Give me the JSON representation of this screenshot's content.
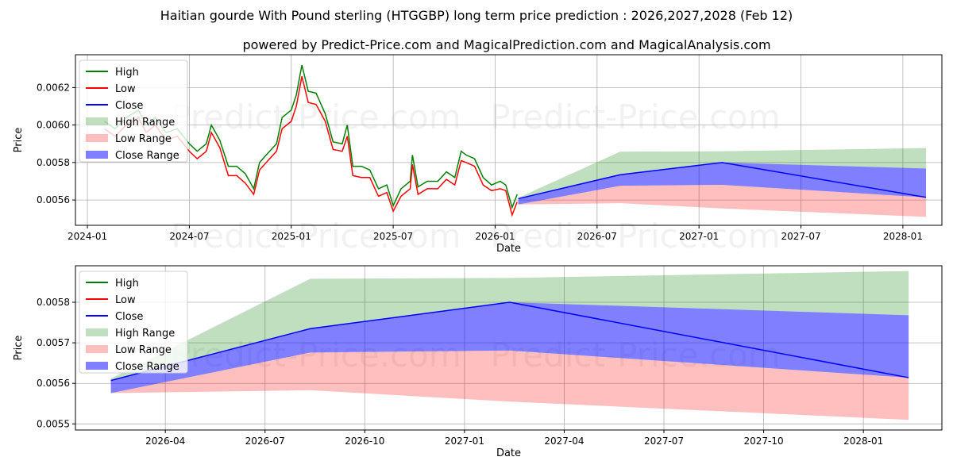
{
  "title": "Haitian gourde With Pound sterling (HTGGBP) long term price prediction : 2026,2027,2028 (Feb 12)",
  "subtitle": "powered by Predict-Price.com and MagicalPrediction.com and MagicalAnalysis.com",
  "watermark": "Predict-Price.com",
  "colors": {
    "high": "#008000",
    "low": "#ff0000",
    "close": "#0000ff",
    "high_range": "#008000",
    "low_range": "#ff0000",
    "close_range": "#0000ff"
  },
  "legend": [
    "High",
    "Low",
    "Close",
    "High Range",
    "Low Range",
    "Close Range"
  ],
  "chart_data": [
    {
      "type": "line",
      "name": "history-and-forecast",
      "xlabel": "Date",
      "ylabel": "Price",
      "ylim": [
        0.005465,
        0.006375
      ],
      "xlim": [
        "2023-12-10",
        "2028-03-10"
      ],
      "yticks": [
        "0.0056",
        "0.0058",
        "0.0060",
        "0.0062"
      ],
      "ytick_values": [
        0.0056,
        0.0058,
        0.006,
        0.0062
      ],
      "xticks": [
        "2024-01",
        "2024-07",
        "2025-01",
        "2025-07",
        "2026-01",
        "2026-07",
        "2027-01",
        "2027-07",
        "2028-01"
      ],
      "grid": true,
      "legend_position": "top-left",
      "history": {
        "dates": [
          "2024-02-01",
          "2024-02-20",
          "2024-03-10",
          "2024-04-01",
          "2024-04-15",
          "2024-05-01",
          "2024-05-20",
          "2024-06-10",
          "2024-07-01",
          "2024-07-15",
          "2024-08-01",
          "2024-08-10",
          "2024-08-25",
          "2024-09-10",
          "2024-09-25",
          "2024-10-10",
          "2024-10-25",
          "2024-11-05",
          "2024-11-20",
          "2024-12-05",
          "2024-12-15",
          "2025-01-01",
          "2025-01-10",
          "2025-01-20",
          "2025-02-01",
          "2025-02-15",
          "2025-03-01",
          "2025-03-15",
          "2025-04-01",
          "2025-04-10",
          "2025-04-20",
          "2025-05-05",
          "2025-05-20",
          "2025-06-05",
          "2025-06-20",
          "2025-07-01",
          "2025-07-15",
          "2025-08-01",
          "2025-08-05",
          "2025-08-15",
          "2025-09-01",
          "2025-09-20",
          "2025-10-05",
          "2025-10-20",
          "2025-11-01",
          "2025-11-10",
          "2025-11-25",
          "2025-12-10",
          "2025-12-25",
          "2026-01-10",
          "2026-01-20",
          "2026-02-01",
          "2026-02-10"
        ],
        "high": [
          0.00602,
          0.00598,
          0.00604,
          0.00608,
          0.006,
          0.00604,
          0.00596,
          0.00598,
          0.0059,
          0.00586,
          0.0059,
          0.006,
          0.00592,
          0.00578,
          0.00578,
          0.00574,
          0.00566,
          0.0058,
          0.00585,
          0.0059,
          0.00604,
          0.00608,
          0.00616,
          0.00632,
          0.00618,
          0.00617,
          0.00606,
          0.00591,
          0.0059,
          0.006,
          0.00578,
          0.00578,
          0.00576,
          0.00566,
          0.00568,
          0.00557,
          0.00566,
          0.0057,
          0.00584,
          0.00567,
          0.0057,
          0.0057,
          0.00575,
          0.00572,
          0.00586,
          0.00584,
          0.00582,
          0.00572,
          0.00568,
          0.0057,
          0.00568,
          0.00556,
          0.00563
        ],
        "low": [
          0.00598,
          0.00594,
          0.006,
          0.00604,
          0.00596,
          0.006,
          0.00592,
          0.00594,
          0.00586,
          0.00582,
          0.00586,
          0.00596,
          0.00588,
          0.00573,
          0.00573,
          0.00569,
          0.00563,
          0.00576,
          0.00581,
          0.00586,
          0.00598,
          0.00602,
          0.0061,
          0.00626,
          0.00612,
          0.00611,
          0.00602,
          0.00587,
          0.00586,
          0.00594,
          0.00573,
          0.00572,
          0.00572,
          0.00562,
          0.00564,
          0.00554,
          0.00562,
          0.00566,
          0.00579,
          0.00563,
          0.00566,
          0.00566,
          0.00571,
          0.00568,
          0.00581,
          0.0058,
          0.00578,
          0.00568,
          0.00565,
          0.00566,
          0.00565,
          0.00552,
          0.00559
        ]
      }
    },
    {
      "type": "area",
      "name": "forecast-zoom",
      "xlabel": "Date",
      "ylabel": "Price",
      "ylim": [
        0.005485,
        0.00589
      ],
      "xlim": [
        "2026-01-10",
        "2028-03-12"
      ],
      "yticks": [
        "0.0055",
        "0.0056",
        "0.0057",
        "0.0058"
      ],
      "ytick_values": [
        0.0055,
        0.0056,
        0.0057,
        0.0058
      ],
      "xticks": [
        "2026-04",
        "2026-07",
        "2026-10",
        "2027-01",
        "2027-04",
        "2027-07",
        "2027-10",
        "2028-01"
      ],
      "grid": true,
      "legend_position": "top-left"
    }
  ],
  "forecast": {
    "dates": [
      "2026-02-12",
      "2026-08-12",
      "2027-02-12",
      "2028-02-12"
    ],
    "close": [
      0.005607,
      0.005735,
      0.0058,
      0.005614
    ],
    "high_range_upper": [
      0.005612,
      0.005858,
      0.00586,
      0.005877
    ],
    "high_range_lower": [
      0.005607,
      0.005735,
      0.0058,
      0.005768
    ],
    "close_range_upper": [
      0.005607,
      0.005735,
      0.0058,
      0.005768
    ],
    "close_range_lower": [
      0.005576,
      0.005676,
      0.005681,
      0.005614
    ],
    "low_range_upper": [
      0.005576,
      0.005676,
      0.005681,
      0.005614
    ],
    "low_range_lower": [
      0.005576,
      0.005583,
      0.005555,
      0.00551
    ]
  }
}
